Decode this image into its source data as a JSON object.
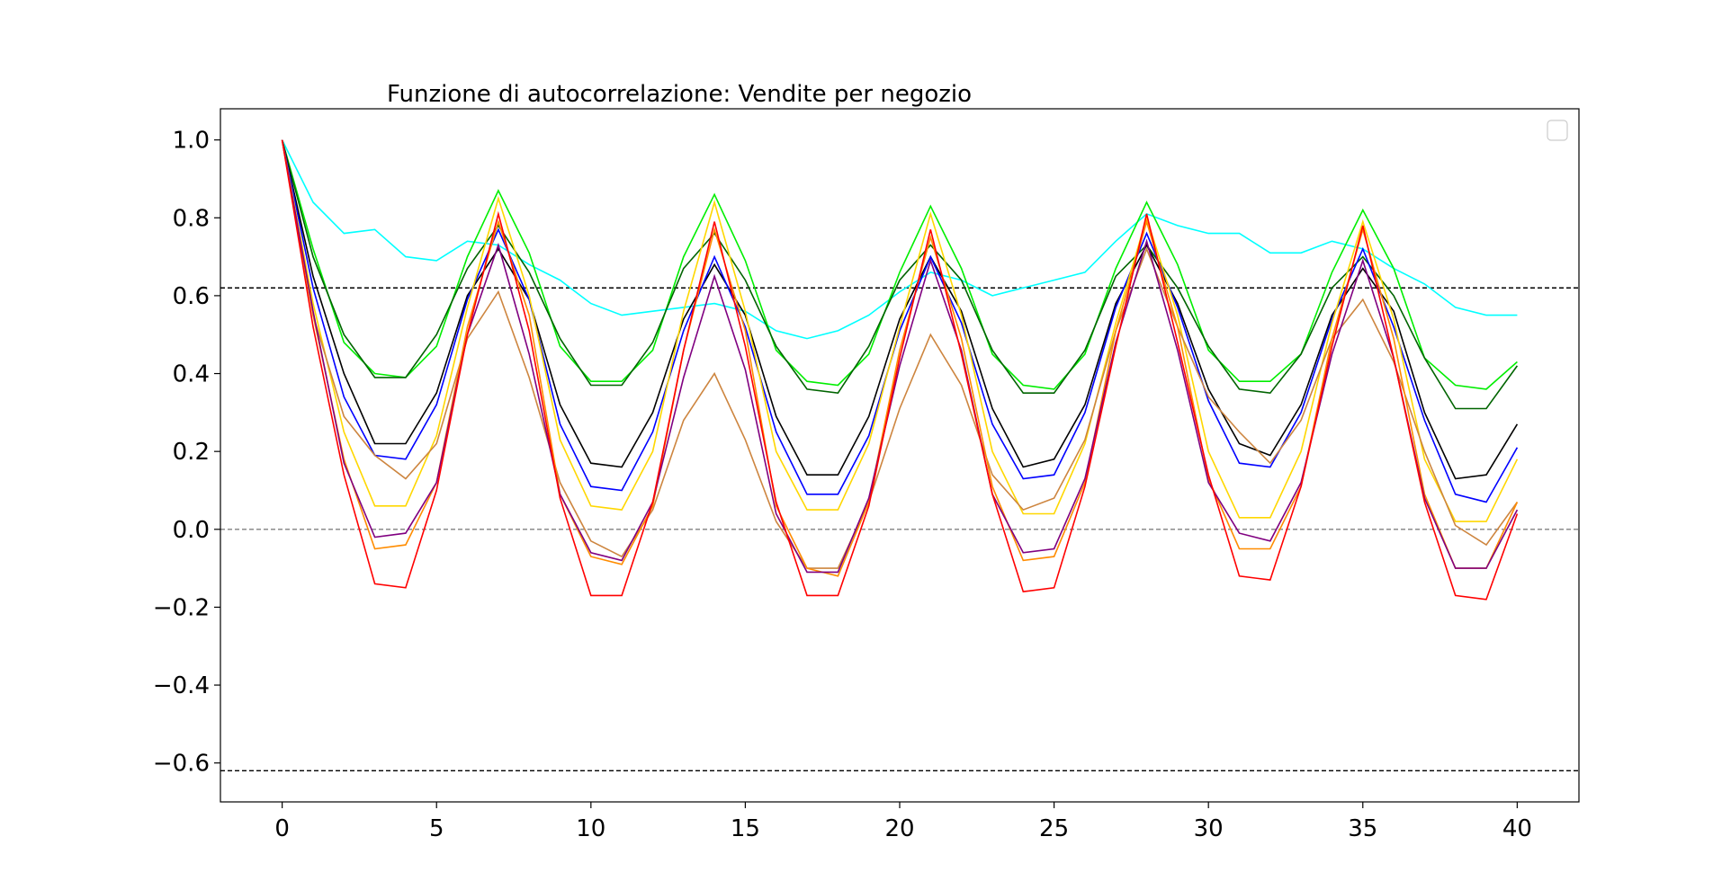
{
  "chart_data": {
    "type": "line",
    "title": "Funzione di autocorrelazione: Vendite per negozio",
    "xlabel": "",
    "ylabel": "",
    "xlim": [
      -2,
      42
    ],
    "ylim": [
      -0.7,
      1.08
    ],
    "x_ticks": [
      0,
      5,
      10,
      15,
      20,
      25,
      30,
      35,
      40
    ],
    "y_ticks": [
      1.0,
      0.8,
      0.6,
      0.4,
      0.2,
      0.0,
      -0.2,
      -0.4,
      -0.6
    ],
    "y_tick_labels": [
      "1.0",
      "0.8",
      "0.6",
      "0.4",
      "0.2",
      "0.0",
      "−0.2",
      "−0.4",
      "−0.6"
    ],
    "x_tick_labels": [
      "0",
      "5",
      "10",
      "15",
      "20",
      "25",
      "30",
      "35",
      "40"
    ],
    "reference_lines": [
      {
        "y": 0.62,
        "style": "dashed",
        "color": "#000000"
      },
      {
        "y": 0.0,
        "style": "dashed",
        "color": "#808080"
      },
      {
        "y": -0.62,
        "style": "dashed",
        "color": "#000000"
      }
    ],
    "legend": {
      "placement": "top-right",
      "entries": []
    },
    "grid": false,
    "x": [
      0,
      1,
      2,
      3,
      4,
      5,
      6,
      7,
      8,
      9,
      10,
      11,
      12,
      13,
      14,
      15,
      16,
      17,
      18,
      19,
      20,
      21,
      22,
      23,
      24,
      25,
      26,
      27,
      28,
      29,
      30,
      31,
      32,
      33,
      34,
      35,
      36,
      37,
      38,
      39,
      40
    ],
    "series": [
      {
        "color": "#00ffff",
        "values": [
          1.0,
          0.84,
          0.76,
          0.77,
          0.7,
          0.69,
          0.74,
          0.73,
          0.68,
          0.64,
          0.58,
          0.55,
          0.56,
          0.57,
          0.58,
          0.56,
          0.51,
          0.49,
          0.51,
          0.55,
          0.61,
          0.66,
          0.64,
          0.6,
          0.62,
          0.64,
          0.66,
          0.74,
          0.81,
          0.78,
          0.76,
          0.76,
          0.71,
          0.71,
          0.74,
          0.72,
          0.67,
          0.63,
          0.57,
          0.55,
          0.55
        ]
      },
      {
        "color": "#00ee00",
        "values": [
          1.0,
          0.72,
          0.48,
          0.4,
          0.39,
          0.47,
          0.7,
          0.87,
          0.71,
          0.47,
          0.38,
          0.38,
          0.46,
          0.7,
          0.86,
          0.69,
          0.46,
          0.38,
          0.37,
          0.45,
          0.66,
          0.83,
          0.67,
          0.45,
          0.37,
          0.36,
          0.45,
          0.67,
          0.84,
          0.68,
          0.46,
          0.38,
          0.38,
          0.45,
          0.66,
          0.82,
          0.67,
          0.44,
          0.37,
          0.36,
          0.43
        ]
      },
      {
        "color": "#006400",
        "values": [
          1.0,
          0.7,
          0.5,
          0.39,
          0.39,
          0.5,
          0.67,
          0.78,
          0.66,
          0.49,
          0.37,
          0.37,
          0.48,
          0.67,
          0.76,
          0.64,
          0.47,
          0.36,
          0.35,
          0.47,
          0.64,
          0.73,
          0.64,
          0.46,
          0.35,
          0.35,
          0.46,
          0.65,
          0.73,
          0.62,
          0.47,
          0.36,
          0.35,
          0.45,
          0.62,
          0.7,
          0.6,
          0.44,
          0.31,
          0.31,
          0.42
        ]
      },
      {
        "color": "#000000",
        "values": [
          1.0,
          0.65,
          0.4,
          0.22,
          0.22,
          0.35,
          0.6,
          0.72,
          0.59,
          0.32,
          0.17,
          0.16,
          0.3,
          0.54,
          0.68,
          0.55,
          0.29,
          0.14,
          0.14,
          0.29,
          0.54,
          0.7,
          0.56,
          0.31,
          0.16,
          0.18,
          0.32,
          0.58,
          0.73,
          0.58,
          0.36,
          0.22,
          0.19,
          0.32,
          0.55,
          0.67,
          0.56,
          0.3,
          0.13,
          0.14,
          0.27
        ]
      },
      {
        "color": "#0000ff",
        "values": [
          1.0,
          0.62,
          0.34,
          0.19,
          0.18,
          0.32,
          0.59,
          0.77,
          0.59,
          0.27,
          0.11,
          0.1,
          0.25,
          0.51,
          0.7,
          0.52,
          0.25,
          0.09,
          0.09,
          0.24,
          0.51,
          0.7,
          0.53,
          0.27,
          0.13,
          0.14,
          0.3,
          0.57,
          0.76,
          0.57,
          0.33,
          0.17,
          0.16,
          0.3,
          0.54,
          0.72,
          0.52,
          0.28,
          0.09,
          0.07,
          0.21
        ]
      },
      {
        "color": "#ffd700",
        "values": [
          1.0,
          0.58,
          0.25,
          0.06,
          0.06,
          0.24,
          0.57,
          0.85,
          0.6,
          0.23,
          0.06,
          0.05,
          0.2,
          0.56,
          0.84,
          0.56,
          0.2,
          0.05,
          0.05,
          0.22,
          0.52,
          0.81,
          0.55,
          0.2,
          0.04,
          0.04,
          0.22,
          0.53,
          0.8,
          0.55,
          0.2,
          0.03,
          0.03,
          0.2,
          0.53,
          0.79,
          0.54,
          0.18,
          0.02,
          0.02,
          0.18
        ]
      },
      {
        "color": "#cd853f",
        "values": [
          1.0,
          0.55,
          0.29,
          0.19,
          0.13,
          0.22,
          0.49,
          0.61,
          0.39,
          0.12,
          -0.03,
          -0.07,
          0.05,
          0.28,
          0.4,
          0.23,
          0.02,
          -0.1,
          -0.1,
          0.07,
          0.31,
          0.5,
          0.37,
          0.14,
          0.05,
          0.08,
          0.23,
          0.51,
          0.72,
          0.52,
          0.34,
          0.25,
          0.17,
          0.28,
          0.49,
          0.59,
          0.43,
          0.2,
          0.01,
          -0.04,
          0.07
        ]
      },
      {
        "color": "#ff8c00",
        "values": [
          1.0,
          0.55,
          0.18,
          -0.05,
          -0.04,
          0.12,
          0.52,
          0.79,
          0.55,
          0.09,
          -0.07,
          -0.09,
          0.06,
          0.46,
          0.77,
          0.51,
          0.06,
          -0.1,
          -0.12,
          0.07,
          0.46,
          0.75,
          0.49,
          0.11,
          -0.08,
          -0.07,
          0.12,
          0.51,
          0.79,
          0.52,
          0.13,
          -0.05,
          -0.05,
          0.11,
          0.49,
          0.77,
          0.49,
          0.09,
          -0.1,
          -0.1,
          0.07
        ]
      },
      {
        "color": "#800080",
        "values": [
          1.0,
          0.56,
          0.17,
          -0.02,
          -0.01,
          0.12,
          0.5,
          0.73,
          0.45,
          0.09,
          -0.06,
          -0.08,
          0.07,
          0.39,
          0.65,
          0.41,
          0.04,
          -0.11,
          -0.11,
          0.08,
          0.42,
          0.69,
          0.46,
          0.09,
          -0.06,
          -0.05,
          0.13,
          0.48,
          0.74,
          0.46,
          0.12,
          -0.01,
          -0.03,
          0.12,
          0.45,
          0.69,
          0.44,
          0.08,
          -0.1,
          -0.1,
          0.05
        ]
      },
      {
        "color": "#ff0000",
        "values": [
          1.0,
          0.52,
          0.14,
          -0.14,
          -0.15,
          0.1,
          0.5,
          0.81,
          0.51,
          0.08,
          -0.17,
          -0.17,
          0.07,
          0.46,
          0.79,
          0.47,
          0.07,
          -0.17,
          -0.17,
          0.06,
          0.44,
          0.77,
          0.45,
          0.09,
          -0.16,
          -0.15,
          0.11,
          0.47,
          0.81,
          0.48,
          0.14,
          -0.12,
          -0.13,
          0.11,
          0.47,
          0.78,
          0.44,
          0.07,
          -0.17,
          -0.18,
          0.04
        ]
      }
    ]
  }
}
